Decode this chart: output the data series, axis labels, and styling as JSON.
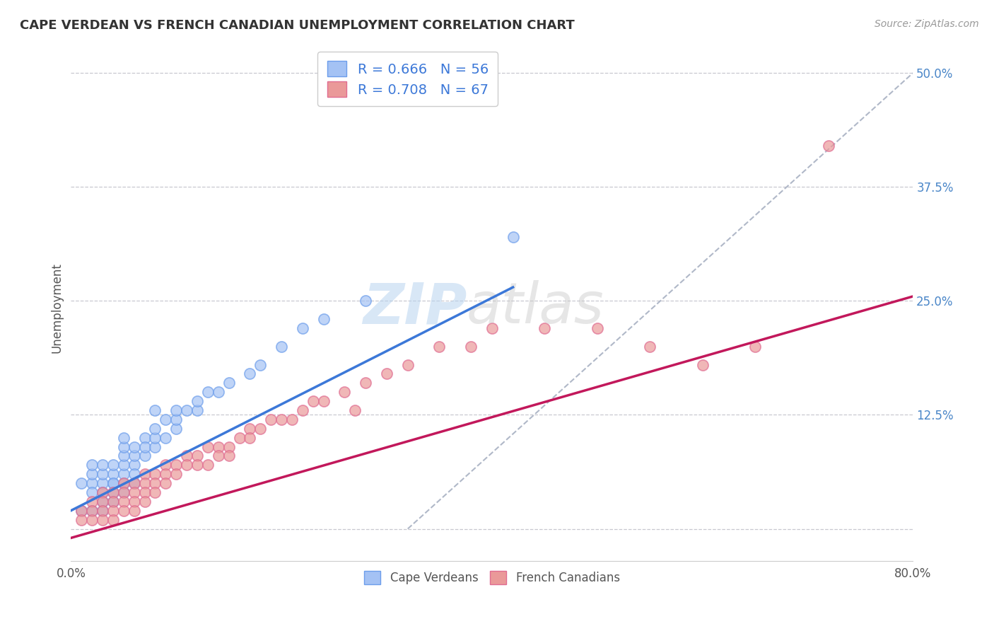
{
  "title": "CAPE VERDEAN VS FRENCH CANADIAN UNEMPLOYMENT CORRELATION CHART",
  "source": "Source: ZipAtlas.com",
  "ylabel": "Unemployment",
  "xlim": [
    0.0,
    0.8
  ],
  "ylim": [
    -0.035,
    0.52
  ],
  "yticks_right": [
    0.0,
    0.125,
    0.25,
    0.375,
    0.5
  ],
  "ytick_right_labels": [
    "",
    "12.5%",
    "25.0%",
    "37.5%",
    "50.0%"
  ],
  "blue_R": 0.666,
  "blue_N": 56,
  "pink_R": 0.708,
  "pink_N": 67,
  "blue_color": "#a4c2f4",
  "pink_color": "#ea9999",
  "blue_edge_color": "#6d9eeb",
  "pink_edge_color": "#e06c91",
  "blue_line_color": "#3c78d8",
  "pink_line_color": "#c2185b",
  "dashed_line_color": "#b0b8c8",
  "background_color": "#ffffff",
  "grid_color": "#c8c8d0",
  "blue_line_x0": 0.0,
  "blue_line_y0": 0.02,
  "blue_line_x1": 0.42,
  "blue_line_y1": 0.265,
  "pink_line_x0": 0.0,
  "pink_line_y0": -0.01,
  "pink_line_x1": 0.8,
  "pink_line_y1": 0.255,
  "dash_line_x0": 0.32,
  "dash_line_y0": 0.0,
  "dash_line_x1": 0.8,
  "dash_line_y1": 0.5,
  "blue_scatter_x": [
    0.01,
    0.01,
    0.02,
    0.02,
    0.02,
    0.02,
    0.02,
    0.03,
    0.03,
    0.03,
    0.03,
    0.03,
    0.03,
    0.04,
    0.04,
    0.04,
    0.04,
    0.04,
    0.04,
    0.05,
    0.05,
    0.05,
    0.05,
    0.05,
    0.05,
    0.05,
    0.06,
    0.06,
    0.06,
    0.06,
    0.06,
    0.07,
    0.07,
    0.07,
    0.08,
    0.08,
    0.08,
    0.08,
    0.09,
    0.09,
    0.1,
    0.1,
    0.1,
    0.11,
    0.12,
    0.12,
    0.13,
    0.14,
    0.15,
    0.17,
    0.18,
    0.2,
    0.22,
    0.24,
    0.28,
    0.42
  ],
  "blue_scatter_y": [
    0.05,
    0.02,
    0.05,
    0.06,
    0.07,
    0.04,
    0.02,
    0.05,
    0.06,
    0.07,
    0.04,
    0.03,
    0.02,
    0.05,
    0.06,
    0.05,
    0.04,
    0.03,
    0.07,
    0.06,
    0.07,
    0.08,
    0.05,
    0.04,
    0.09,
    0.1,
    0.07,
    0.08,
    0.06,
    0.05,
    0.09,
    0.08,
    0.1,
    0.09,
    0.09,
    0.1,
    0.11,
    0.13,
    0.1,
    0.12,
    0.11,
    0.12,
    0.13,
    0.13,
    0.13,
    0.14,
    0.15,
    0.15,
    0.16,
    0.17,
    0.18,
    0.2,
    0.22,
    0.23,
    0.25,
    0.32
  ],
  "pink_scatter_x": [
    0.01,
    0.01,
    0.02,
    0.02,
    0.02,
    0.03,
    0.03,
    0.03,
    0.03,
    0.04,
    0.04,
    0.04,
    0.04,
    0.05,
    0.05,
    0.05,
    0.05,
    0.06,
    0.06,
    0.06,
    0.06,
    0.07,
    0.07,
    0.07,
    0.07,
    0.08,
    0.08,
    0.08,
    0.09,
    0.09,
    0.09,
    0.1,
    0.1,
    0.11,
    0.11,
    0.12,
    0.12,
    0.13,
    0.13,
    0.14,
    0.14,
    0.15,
    0.15,
    0.16,
    0.17,
    0.17,
    0.18,
    0.19,
    0.2,
    0.21,
    0.22,
    0.23,
    0.24,
    0.26,
    0.27,
    0.28,
    0.3,
    0.32,
    0.35,
    0.38,
    0.4,
    0.45,
    0.5,
    0.55,
    0.6,
    0.65,
    0.72
  ],
  "pink_scatter_y": [
    0.02,
    0.01,
    0.03,
    0.02,
    0.01,
    0.04,
    0.03,
    0.02,
    0.01,
    0.04,
    0.03,
    0.02,
    0.01,
    0.05,
    0.04,
    0.03,
    0.02,
    0.05,
    0.04,
    0.03,
    0.02,
    0.06,
    0.05,
    0.04,
    0.03,
    0.06,
    0.05,
    0.04,
    0.07,
    0.06,
    0.05,
    0.07,
    0.06,
    0.08,
    0.07,
    0.08,
    0.07,
    0.09,
    0.07,
    0.09,
    0.08,
    0.09,
    0.08,
    0.1,
    0.11,
    0.1,
    0.11,
    0.12,
    0.12,
    0.12,
    0.13,
    0.14,
    0.14,
    0.15,
    0.13,
    0.16,
    0.17,
    0.18,
    0.2,
    0.2,
    0.22,
    0.22,
    0.22,
    0.2,
    0.18,
    0.2,
    0.42
  ]
}
